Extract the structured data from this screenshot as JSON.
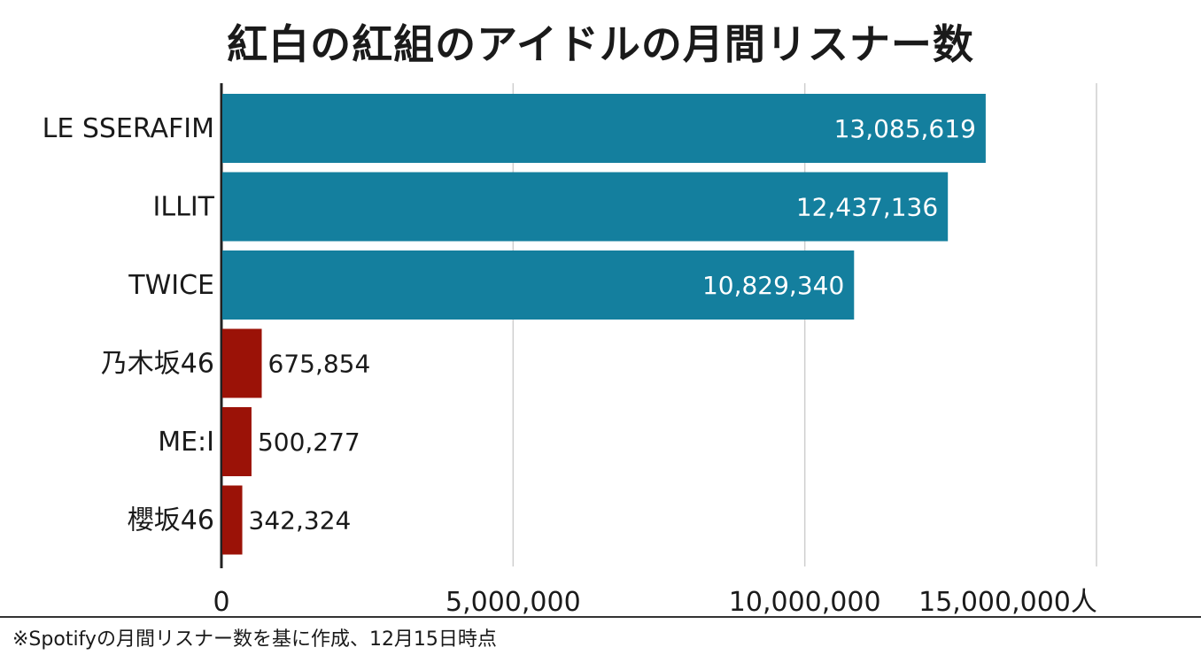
{
  "title": "紅白の紅組のアイドルの月間リスナー数",
  "footnote": "※Spotifyの月間リスナー数を基に作成、12月15日時点",
  "colors": {
    "kpop": "#147f9e",
    "jp": "#9b1207",
    "grid": "#cfcfcf",
    "axis": "#222222"
  },
  "chart_data": {
    "type": "bar",
    "orientation": "horizontal",
    "categories": [
      "LE SSERAFIM",
      "ILLIT",
      "TWICE",
      "乃木坂46",
      "ME:I",
      "櫻坂46"
    ],
    "values": [
      13085619,
      12437136,
      10829340,
      675854,
      500277,
      342324
    ],
    "value_labels": [
      "13,085,619",
      "12,437,136",
      "10,829,340",
      "675,854",
      "500,277",
      "342,324"
    ],
    "bar_colors": [
      "#147f9e",
      "#147f9e",
      "#147f9e",
      "#9b1207",
      "#9b1207",
      "#9b1207"
    ],
    "xlim": [
      0,
      15000000
    ],
    "x_ticks": [
      0,
      5000000,
      10000000,
      15000000
    ],
    "x_tick_labels": [
      "0",
      "5,000,000",
      "10,000,000",
      "15,000,000人"
    ],
    "grid": true
  }
}
